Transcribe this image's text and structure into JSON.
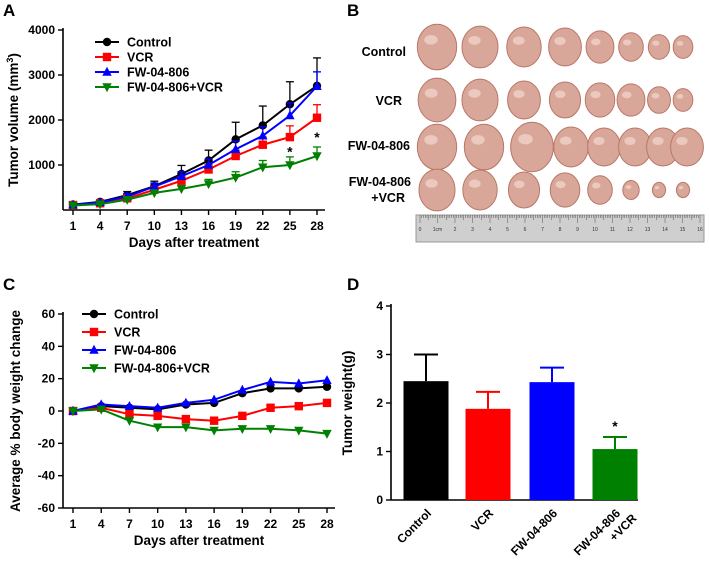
{
  "panels": {
    "A": "A",
    "B": "B",
    "C": "C",
    "D": "D"
  },
  "photo": {
    "row_labels": [
      "Control",
      "VCR",
      "FW-04-806"
    ],
    "row_label_combo": [
      "FW-04-806",
      "+VCR"
    ],
    "ruler_numbers": [
      "0",
      "1cm",
      "2",
      "3",
      "4",
      "5",
      "6",
      "7",
      "8",
      "9",
      "10",
      "11",
      "12",
      "13",
      "14",
      "15",
      "16"
    ],
    "tumor_color": "#d9a79a",
    "ruler_color": "#cfcfcf"
  },
  "series_styles": {
    "Control": {
      "color": "#000000",
      "marker": "circle"
    },
    "VCR": {
      "color": "#ff0000",
      "marker": "square"
    },
    "FW-04-806": {
      "color": "#0000ff",
      "marker": "triangle-up"
    },
    "FW-04-806+VCR": {
      "color": "#008000",
      "marker": "triangle-down"
    }
  },
  "chart_data": [
    {
      "id": "A",
      "type": "line",
      "xlabel": "Days after treatment",
      "ylabel": "Tumor volume (mm",
      "ylabel_sup": "3",
      "ylabel_close": ")",
      "x": [
        1,
        4,
        7,
        10,
        13,
        16,
        19,
        22,
        25,
        28
      ],
      "xticks": [
        1,
        4,
        7,
        10,
        13,
        16,
        19,
        22,
        25,
        28
      ],
      "yticks": [
        1000,
        2000,
        3000,
        4000
      ],
      "ylim": [
        0,
        4000
      ],
      "legend": "top-left",
      "series": [
        {
          "name": "Control",
          "values": [
            120,
            180,
            330,
            530,
            800,
            1100,
            1570,
            1880,
            2350,
            2760
          ],
          "err": [
            20,
            30,
            80,
            110,
            190,
            230,
            380,
            430,
            500,
            620
          ]
        },
        {
          "name": "VCR",
          "values": [
            110,
            150,
            260,
            450,
            650,
            900,
            1200,
            1450,
            1620,
            2050
          ],
          "err": [
            15,
            25,
            40,
            70,
            90,
            110,
            130,
            170,
            250,
            290
          ]
        },
        {
          "name": "FW-04-806",
          "values": [
            115,
            170,
            300,
            520,
            750,
            1000,
            1350,
            1650,
            2100,
            2750
          ],
          "err": [
            20,
            30,
            60,
            80,
            100,
            130,
            180,
            200,
            280,
            320
          ]
        },
        {
          "name": "FW-04-806+VCR",
          "values": [
            100,
            130,
            230,
            380,
            470,
            580,
            720,
            950,
            1000,
            1200
          ],
          "err": [
            10,
            20,
            30,
            50,
            70,
            100,
            130,
            150,
            180,
            200
          ]
        }
      ],
      "annotations": [
        {
          "x": 25,
          "y": 1300,
          "text": "*"
        },
        {
          "x": 28,
          "y": 1620,
          "text": "*"
        }
      ]
    },
    {
      "id": "C",
      "type": "line",
      "xlabel": "Days after treatment",
      "ylabel": "Average % body weight change",
      "x": [
        1,
        4,
        7,
        10,
        13,
        16,
        19,
        22,
        25,
        28
      ],
      "xticks": [
        1,
        4,
        7,
        10,
        13,
        16,
        19,
        22,
        25,
        28
      ],
      "yticks": [
        -60,
        -40,
        -20,
        0,
        20,
        40,
        60
      ],
      "ylim": [
        -60,
        60
      ],
      "legend": "top-left",
      "series": [
        {
          "name": "Control",
          "values": [
            0,
            3,
            2,
            1,
            4,
            5,
            11,
            14,
            14,
            15
          ]
        },
        {
          "name": "VCR",
          "values": [
            0,
            2,
            -2,
            -3,
            -5,
            -6,
            -3,
            2,
            3,
            5
          ]
        },
        {
          "name": "FW-04-806",
          "values": [
            0,
            4,
            3,
            2,
            5,
            7,
            13,
            18,
            17,
            19
          ]
        },
        {
          "name": "FW-04-806+VCR",
          "values": [
            0,
            1,
            -6,
            -10,
            -10,
            -12,
            -11,
            -11,
            -12,
            -14
          ]
        }
      ]
    },
    {
      "id": "D",
      "type": "bar",
      "ylabel": "Tumor weight(g)",
      "categories": [
        "Control",
        "VCR",
        "FW-04-806",
        "FW-04-806+VCR"
      ],
      "category_labels": [
        [
          "Control"
        ],
        [
          "VCR"
        ],
        [
          "FW-04-806"
        ],
        [
          "FW-04-806",
          "+VCR"
        ]
      ],
      "values": [
        2.45,
        1.88,
        2.43,
        1.05
      ],
      "err": [
        0.55,
        0.35,
        0.3,
        0.25
      ],
      "colors": [
        "#000000",
        "#ff0000",
        "#0000ff",
        "#008000"
      ],
      "yticks": [
        0,
        1,
        2,
        3,
        4
      ],
      "ylim": [
        0,
        4
      ],
      "annotations": [
        {
          "category": "FW-04-806+VCR",
          "text": "*"
        }
      ]
    }
  ]
}
